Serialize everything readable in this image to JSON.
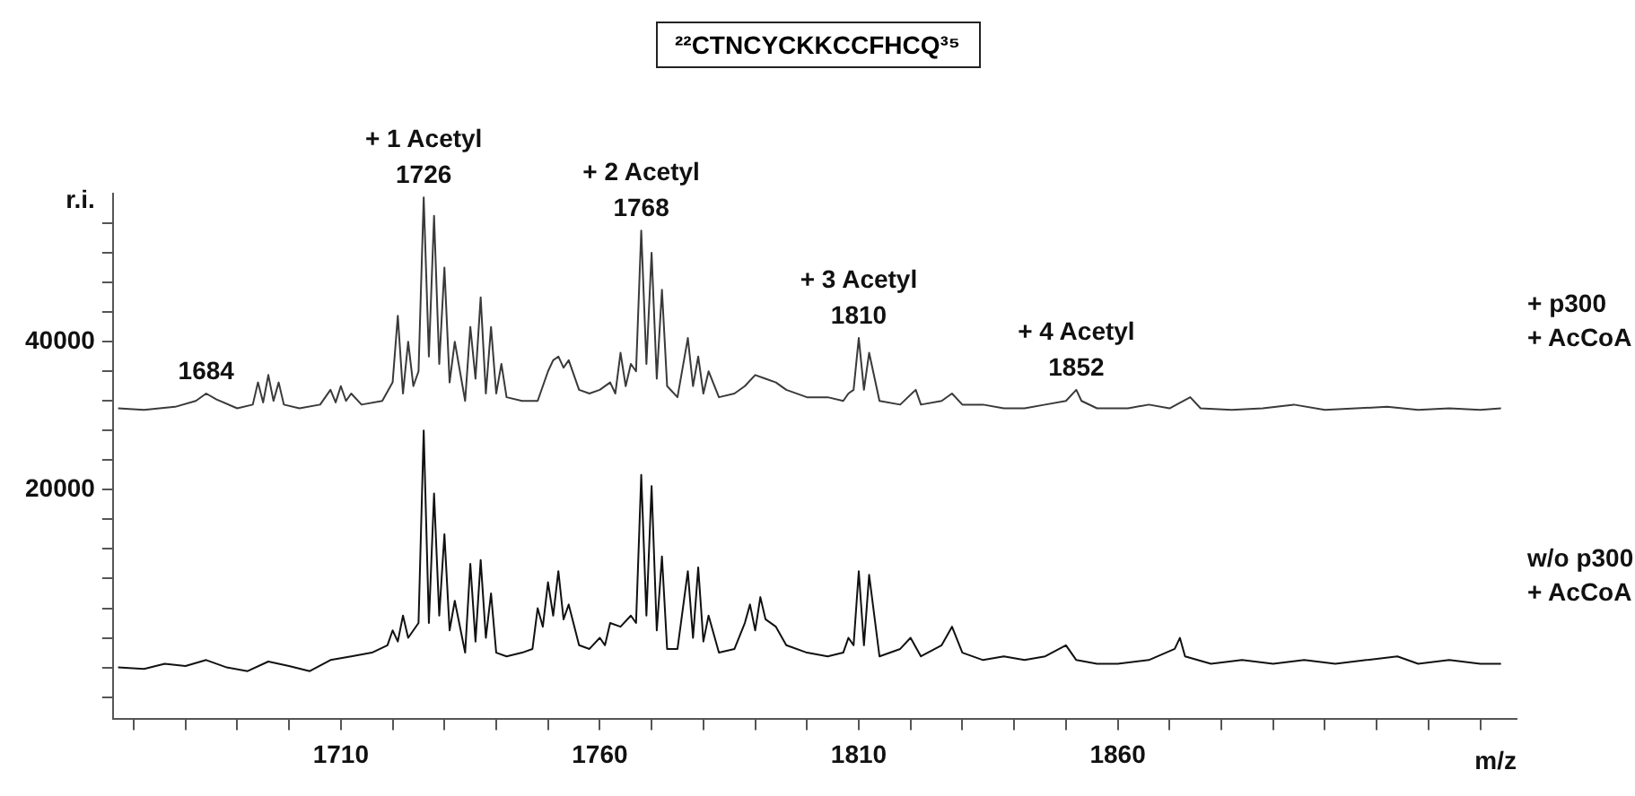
{
  "chart_data": {
    "type": "line",
    "title": "²²CTNCYCKKCCFHCQ³⁵",
    "xlabel": "m/z",
    "ylabel": "r.i.",
    "xlim": [
      1666,
      1937
    ],
    "xticks": [
      {
        "value": 1670,
        "label": null
      },
      {
        "value": 1680,
        "label": null
      },
      {
        "value": 1690,
        "label": null
      },
      {
        "value": 1700,
        "label": null
      },
      1710,
      {
        "value": 1720,
        "label": null
      },
      {
        "value": 1730,
        "label": null
      },
      {
        "value": 1740,
        "label": null
      },
      {
        "value": 1750,
        "label": null
      },
      1760,
      {
        "value": 1770,
        "label": null
      },
      {
        "value": 1780,
        "label": null
      },
      {
        "value": 1790,
        "label": null
      },
      {
        "value": 1800,
        "label": null
      },
      1810,
      {
        "value": 1820,
        "label": null
      },
      {
        "value": 1830,
        "label": null
      },
      {
        "value": 1840,
        "label": null
      },
      {
        "value": 1850,
        "label": null
      },
      1860,
      {
        "value": 1870,
        "label": null
      },
      {
        "value": 1880,
        "label": null
      },
      {
        "value": 1890,
        "label": null
      },
      {
        "value": 1900,
        "label": null
      },
      {
        "value": 1910,
        "label": null
      },
      {
        "value": 1920,
        "label": null
      },
      {
        "value": 1930,
        "label": null
      }
    ],
    "ylim": [
      -11000,
      60000
    ],
    "yticks": [
      {
        "value": -8000,
        "label": null
      },
      {
        "value": -4000,
        "label": null
      },
      {
        "value": 0,
        "label": null
      },
      {
        "value": 4000,
        "label": null
      },
      {
        "value": 8000,
        "label": null
      },
      {
        "value": 12000,
        "label": null
      },
      {
        "value": 16000,
        "label": null
      },
      20000,
      {
        "value": 24000,
        "label": null
      },
      {
        "value": 28000,
        "label": null
      },
      {
        "value": 32000,
        "label": null
      },
      {
        "value": 36000,
        "label": null
      },
      40000,
      {
        "value": 44000,
        "label": null
      },
      {
        "value": 48000,
        "label": null
      },
      {
        "value": 52000,
        "label": null
      },
      {
        "value": 56000,
        "label": null
      }
    ],
    "grid": false,
    "legend": false,
    "marker": "none",
    "line_style": "solid",
    "annotations": [
      {
        "text": "1684",
        "x": 1684,
        "y": 33000
      },
      {
        "text": "+ 1 Acetyl\n1726",
        "x": 1726,
        "y": 59500
      },
      {
        "text": "+ 2 Acetyl\n1768",
        "x": 1768,
        "y": 55000
      },
      {
        "text": "+ 3 Acetyl\n1810",
        "x": 1810,
        "y": 40500
      },
      {
        "text": "+ 4 Acetyl\n1852",
        "x": 1852,
        "y": 33500
      }
    ],
    "series": [
      {
        "name": "+ p300\n+ AcCoA",
        "color": "#3a3a3a",
        "x": [
          1667,
          1672,
          1678,
          1682,
          1684,
          1686,
          1690,
          1693,
          1694,
          1695,
          1696,
          1697,
          1698,
          1699,
          1702,
          1706,
          1708,
          1709,
          1710,
          1711,
          1712,
          1714,
          1718,
          1720,
          1721,
          1722,
          1723,
          1724,
          1725,
          1726,
          1727,
          1728,
          1729,
          1730,
          1731,
          1732,
          1734,
          1735,
          1736,
          1737,
          1738,
          1739,
          1740,
          1741,
          1742,
          1745,
          1748,
          1750,
          1751,
          1752,
          1753,
          1754,
          1756,
          1758,
          1760,
          1762,
          1763,
          1764,
          1765,
          1766,
          1767,
          1768,
          1769,
          1770,
          1771,
          1772,
          1773,
          1775,
          1777,
          1778,
          1779,
          1780,
          1781,
          1783,
          1786,
          1788,
          1790,
          1792,
          1794,
          1796,
          1800,
          1804,
          1807,
          1808,
          1809,
          1810,
          1811,
          1812,
          1814,
          1818,
          1821,
          1822,
          1826,
          1828,
          1830,
          1834,
          1838,
          1842,
          1846,
          1850,
          1852,
          1853,
          1856,
          1862,
          1866,
          1870,
          1874,
          1876,
          1882,
          1888,
          1894,
          1900,
          1906,
          1912,
          1918,
          1924,
          1930,
          1934
        ],
        "values": [
          31000,
          30800,
          31200,
          32000,
          33000,
          32200,
          31000,
          31500,
          34500,
          31800,
          35500,
          32000,
          34500,
          31500,
          31000,
          31500,
          33500,
          31800,
          34000,
          32000,
          33000,
          31500,
          32000,
          34500,
          43500,
          33000,
          40000,
          34000,
          36000,
          59500,
          38000,
          57000,
          37000,
          50000,
          34500,
          40000,
          32000,
          42000,
          35000,
          46000,
          33000,
          42000,
          33000,
          37000,
          32500,
          32000,
          32000,
          36000,
          37500,
          38000,
          36500,
          37500,
          33500,
          33000,
          33500,
          34500,
          33000,
          38500,
          34000,
          37000,
          36000,
          55000,
          37000,
          52000,
          35000,
          47000,
          34000,
          32500,
          40500,
          34000,
          38000,
          33000,
          36000,
          32500,
          33000,
          34000,
          35500,
          35000,
          34500,
          33500,
          32500,
          32500,
          32000,
          33000,
          33500,
          40500,
          33500,
          38500,
          32000,
          31500,
          33500,
          31500,
          32000,
          33000,
          31500,
          31500,
          31000,
          31000,
          31500,
          32000,
          33500,
          32000,
          31000,
          31000,
          31500,
          31000,
          32500,
          31000,
          30800,
          31000,
          31500,
          30800,
          31000,
          31200,
          30800,
          31000,
          30800,
          31000
        ]
      },
      {
        "name": "w/o p300\n+ AcCoA",
        "color": "#111111",
        "x": [
          1667,
          1672,
          1676,
          1680,
          1684,
          1688,
          1692,
          1696,
          1700,
          1704,
          1708,
          1712,
          1716,
          1719,
          1720,
          1721,
          1722,
          1723,
          1725,
          1726,
          1727,
          1728,
          1729,
          1730,
          1731,
          1732,
          1734,
          1735,
          1736,
          1737,
          1738,
          1739,
          1740,
          1742,
          1745,
          1747,
          1748,
          1749,
          1750,
          1751,
          1752,
          1753,
          1754,
          1756,
          1758,
          1760,
          1761,
          1762,
          1764,
          1766,
          1767,
          1768,
          1769,
          1770,
          1771,
          1772,
          1773,
          1775,
          1777,
          1778,
          1779,
          1780,
          1781,
          1783,
          1786,
          1788,
          1789,
          1790,
          1791,
          1792,
          1794,
          1796,
          1800,
          1804,
          1807,
          1808,
          1809,
          1810,
          1811,
          1812,
          1814,
          1818,
          1820,
          1822,
          1826,
          1828,
          1830,
          1834,
          1838,
          1842,
          1846,
          1850,
          1852,
          1856,
          1860,
          1866,
          1871,
          1872,
          1873,
          1878,
          1884,
          1890,
          1896,
          1902,
          1908,
          1914,
          1918,
          1924,
          1930,
          1934
        ],
        "values": [
          -4000,
          -4200,
          -3500,
          -3800,
          -3000,
          -4000,
          -4500,
          -3200,
          -3800,
          -4500,
          -3000,
          -2500,
          -2000,
          -1000,
          1000,
          -500,
          3000,
          0,
          2000,
          28000,
          2000,
          19500,
          3000,
          14000,
          1000,
          5000,
          -2000,
          10000,
          -500,
          10500,
          0,
          6000,
          -2000,
          -2500,
          -2000,
          -1500,
          4000,
          1500,
          7500,
          3000,
          9000,
          2500,
          4500,
          -1000,
          -1500,
          0,
          -1000,
          2000,
          1500,
          3000,
          2000,
          22000,
          3000,
          20500,
          1000,
          11000,
          -1500,
          -1500,
          9000,
          0,
          9500,
          -500,
          3000,
          -2000,
          -1500,
          2000,
          4500,
          1000,
          5500,
          2500,
          1500,
          -1000,
          -2000,
          -2500,
          -2000,
          0,
          -1000,
          9000,
          -1000,
          8500,
          -2500,
          -1500,
          0,
          -2500,
          -1000,
          1500,
          -2000,
          -3000,
          -2500,
          -3000,
          -2500,
          -1000,
          -3000,
          -3500,
          -3500,
          -3000,
          -1500,
          0,
          -2500,
          -3500,
          -3000,
          -3500,
          -3000,
          -3500,
          -3000,
          -2500,
          -3500,
          -3000,
          -3500,
          -3500
        ]
      }
    ]
  }
}
